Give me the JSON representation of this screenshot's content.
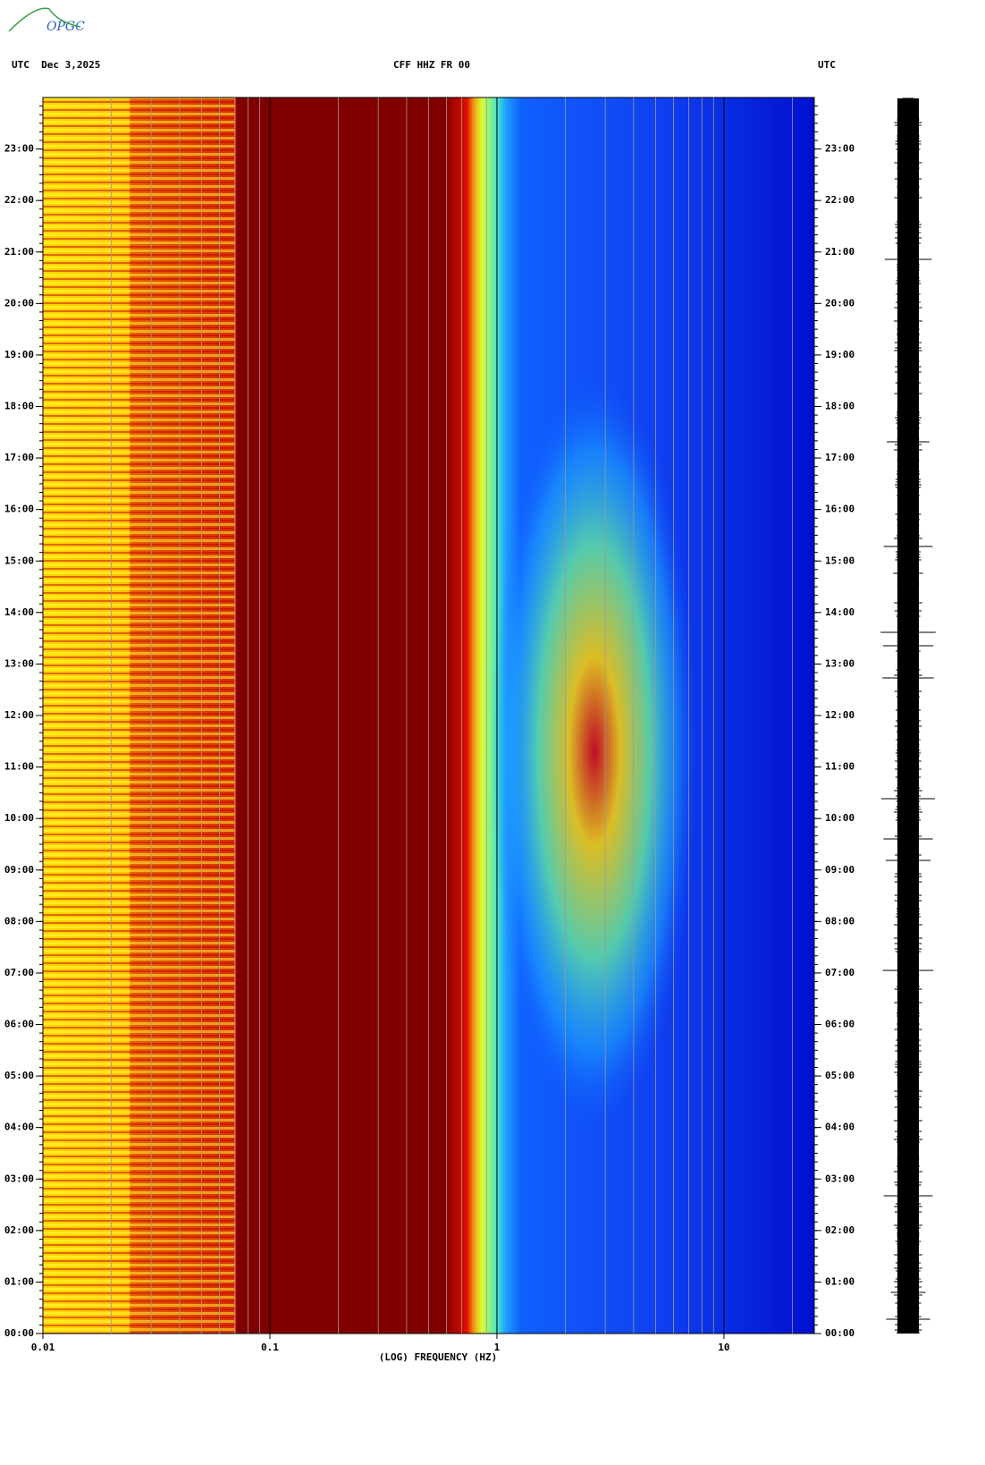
{
  "logo": "OPGC",
  "chart_data": {
    "type": "spectrogram",
    "title": "CFF HHZ FR 00",
    "left_header": "UTC  Dec 3,2025",
    "right_header": "UTC",
    "x_label": "(LOG) FREQUENCY (HZ)",
    "x_log": true,
    "xlim": [
      0.01,
      25
    ],
    "xticks": [
      0.01,
      0.1,
      1,
      10
    ],
    "ylim": [
      0,
      24
    ],
    "yticks": [
      {
        "value": 0,
        "label": "00:00"
      },
      {
        "value": 1,
        "label": "01:00"
      },
      {
        "value": 2,
        "label": "02:00"
      },
      {
        "value": 3,
        "label": "03:00"
      },
      {
        "value": 4,
        "label": "04:00"
      },
      {
        "value": 5,
        "label": "05:00"
      },
      {
        "value": 6,
        "label": "06:00"
      },
      {
        "value": 7,
        "label": "07:00"
      },
      {
        "value": 8,
        "label": "08:00"
      },
      {
        "value": 9,
        "label": "09:00"
      },
      {
        "value": 10,
        "label": "10:00"
      },
      {
        "value": 11,
        "label": "11:00"
      },
      {
        "value": 12,
        "label": "12:00"
      },
      {
        "value": 13,
        "label": "13:00"
      },
      {
        "value": 14,
        "label": "14:00"
      },
      {
        "value": 15,
        "label": "15:00"
      },
      {
        "value": 16,
        "label": "16:00"
      },
      {
        "value": 17,
        "label": "17:00"
      },
      {
        "value": 18,
        "label": "18:00"
      },
      {
        "value": 19,
        "label": "19:00"
      },
      {
        "value": 20,
        "label": "20:00"
      },
      {
        "value": 21,
        "label": "21:00"
      },
      {
        "value": 22,
        "label": "22:00"
      },
      {
        "value": 23,
        "label": "23:00"
      }
    ]
  }
}
